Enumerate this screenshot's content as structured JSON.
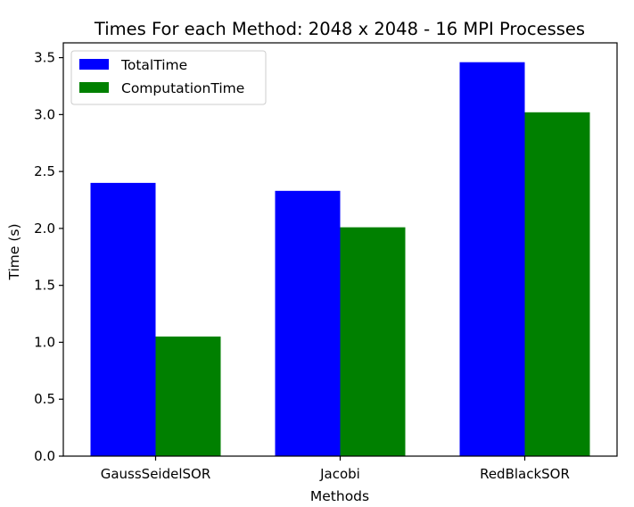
{
  "chart_data": {
    "type": "bar",
    "title": "Times For each Method: 2048 x 2048 - 16 MPI Processes",
    "xlabel": "Methods",
    "ylabel": "Time (s)",
    "categories": [
      "GaussSeidelSOR",
      "Jacobi",
      "RedBlackSOR"
    ],
    "series": [
      {
        "name": "TotalTime",
        "color": "#0000ff",
        "values": [
          2.4,
          2.33,
          3.46
        ]
      },
      {
        "name": "ComputationTime",
        "color": "#008000",
        "values": [
          1.05,
          2.01,
          3.02
        ]
      }
    ],
    "ylim": [
      0,
      3.63
    ],
    "yticks": [
      "0.0",
      "0.5",
      "1.0",
      "1.5",
      "2.0",
      "2.5",
      "3.0",
      "3.5"
    ],
    "legend_position": "top-left",
    "grid": false
  }
}
